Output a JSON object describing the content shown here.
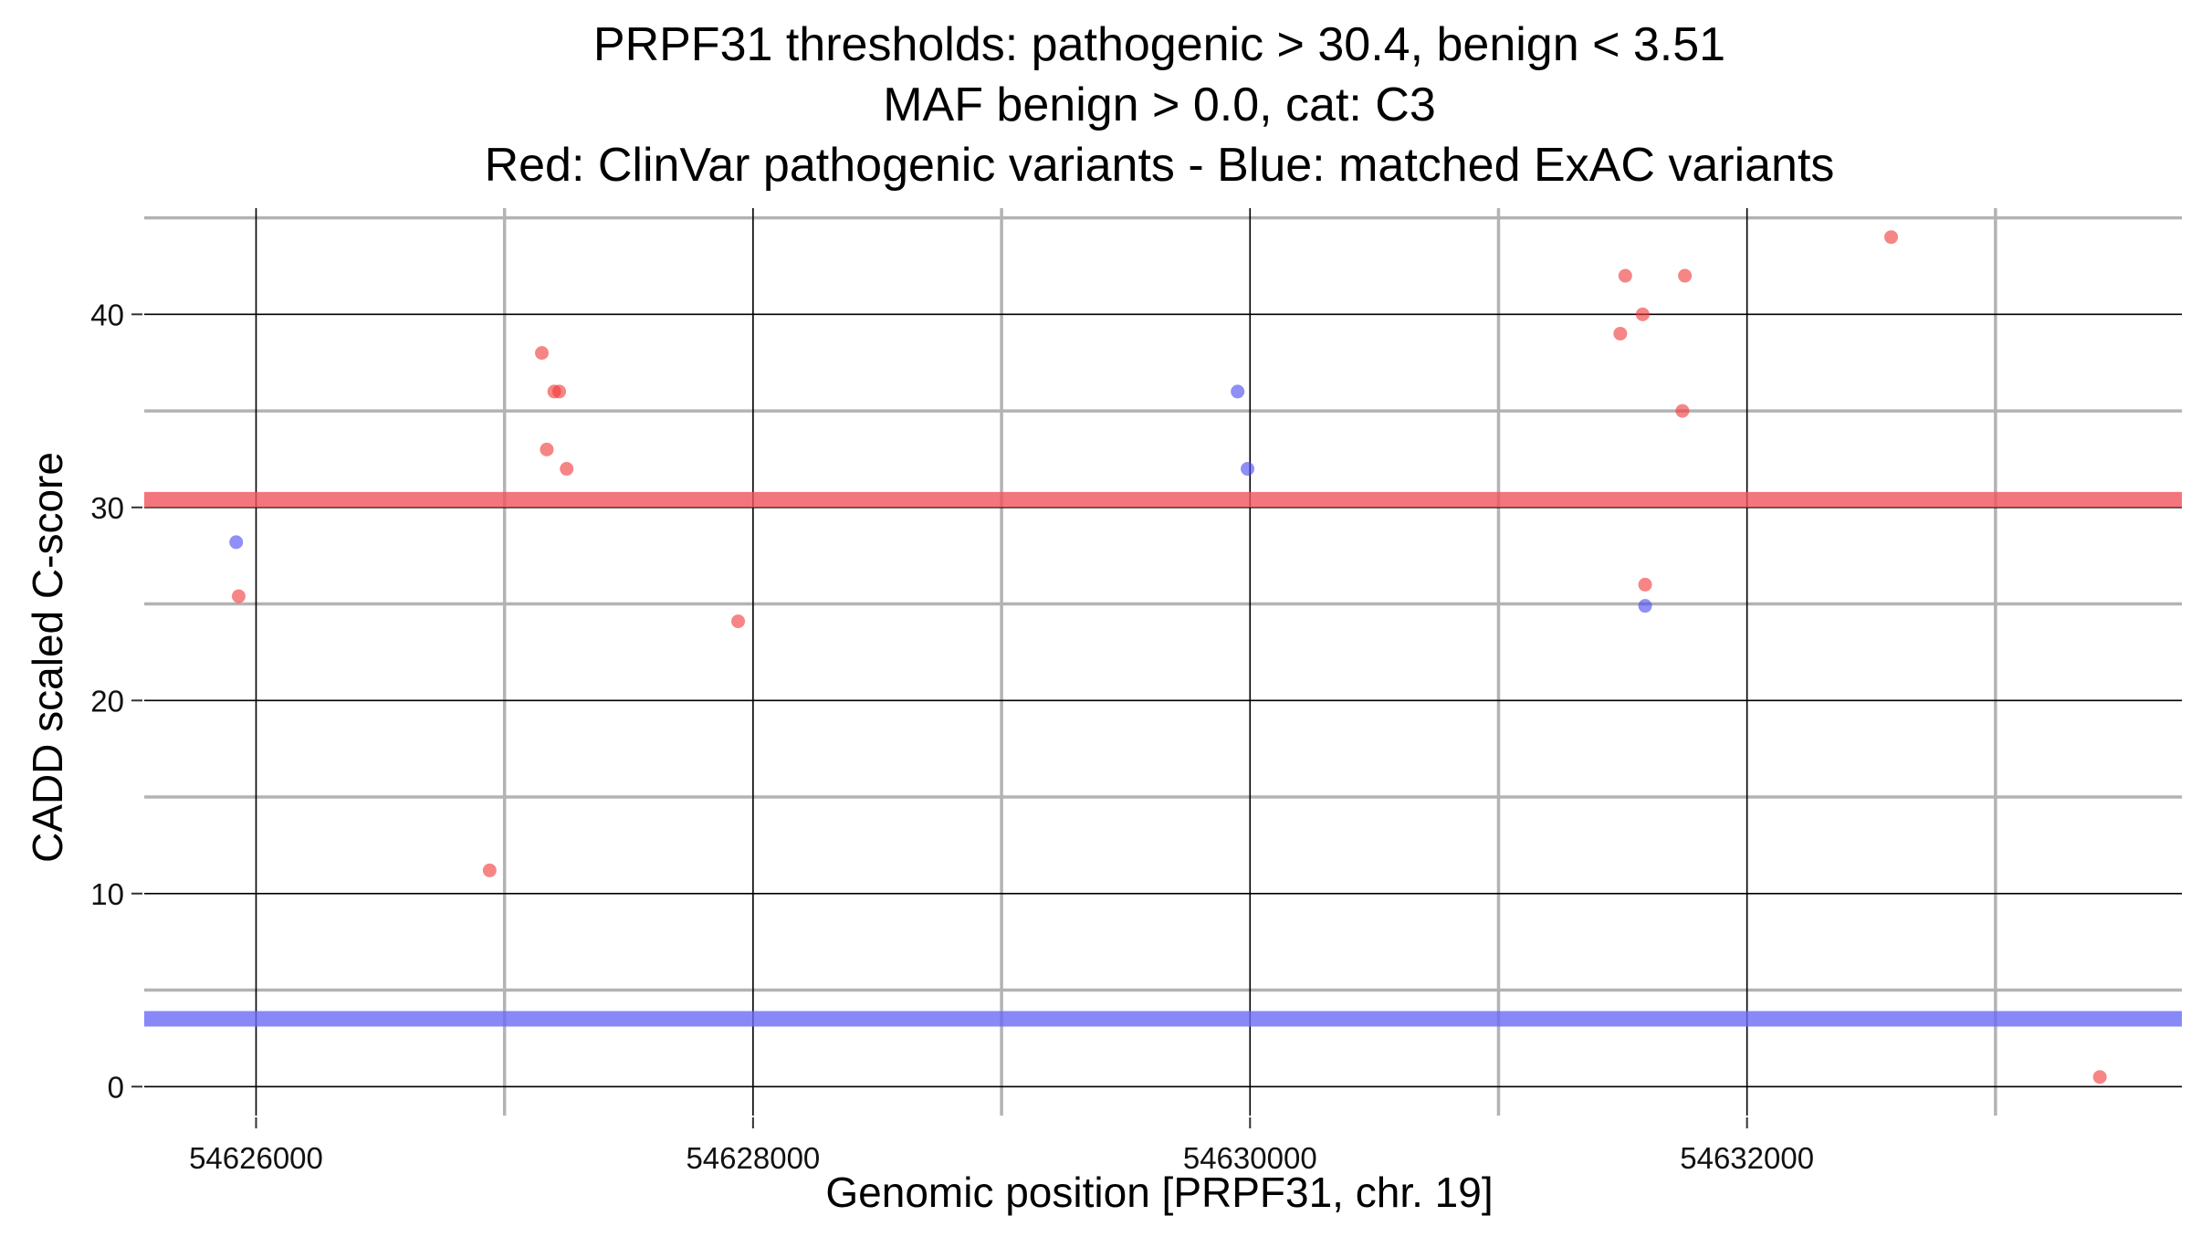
{
  "chart_data": {
    "type": "scatter",
    "title_lines": [
      "PRPF31 thresholds: pathogenic > 30.4, benign < 3.51",
      "MAF benign > 0.0, cat: C3",
      "Red: ClinVar pathogenic variants - Blue: matched ExAC variants"
    ],
    "xlabel": "Genomic position [PRPF31, chr. 19]",
    "ylabel": "CADD scaled C-score",
    "xlim": [
      54625550,
      54633750
    ],
    "ylim": [
      -1.5,
      45.5
    ],
    "x_major_ticks": [
      54626000,
      54628000,
      54630000,
      54632000
    ],
    "x_minor_ticks": [
      54627000,
      54629000,
      54631000,
      54633000
    ],
    "y_major_ticks": [
      0,
      10,
      20,
      30,
      40
    ],
    "y_minor_ticks": [
      5,
      15,
      25,
      35,
      45
    ],
    "grid": true,
    "thresholds": [
      {
        "name": "pathogenic",
        "value": 30.4,
        "color": "#f0545c"
      },
      {
        "name": "benign",
        "value": 3.51,
        "color": "#6a6af5"
      }
    ],
    "series": [
      {
        "color": "#f03a3a",
        "points": [
          {
            "x": 54625930,
            "y": 25.4
          },
          {
            "x": 54626940,
            "y": 11.2
          },
          {
            "x": 54627150,
            "y": 38
          },
          {
            "x": 54627170,
            "y": 33
          },
          {
            "x": 54627200,
            "y": 36
          },
          {
            "x": 54627220,
            "y": 36
          },
          {
            "x": 54627250,
            "y": 32
          },
          {
            "x": 54627940,
            "y": 24.1
          },
          {
            "x": 54631490,
            "y": 39
          },
          {
            "x": 54631510,
            "y": 42
          },
          {
            "x": 54631580,
            "y": 40
          },
          {
            "x": 54631590,
            "y": 26
          },
          {
            "x": 54631740,
            "y": 35
          },
          {
            "x": 54631750,
            "y": 42
          },
          {
            "x": 54632580,
            "y": 44
          },
          {
            "x": 54633420,
            "y": 0.5
          }
        ]
      },
      {
        "color": "#4a4af0",
        "points": [
          {
            "x": 54625920,
            "y": 28.2
          },
          {
            "x": 54629950,
            "y": 36
          },
          {
            "x": 54629990,
            "y": 32
          },
          {
            "x": 54631590,
            "y": 24.9
          }
        ]
      }
    ]
  }
}
